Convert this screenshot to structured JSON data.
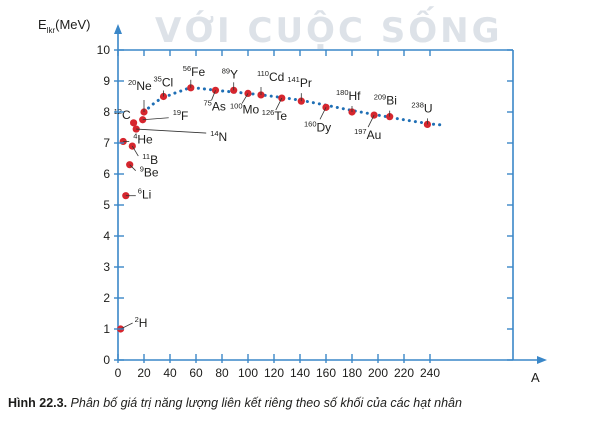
{
  "watermark": "VỚI CUỘC SỐNG",
  "chart_data": {
    "type": "scatter",
    "ylabel": "E",
    "ylabel_sub": "lkr",
    "ylabel_unit": "(MeV)",
    "xlabel": "A",
    "xlim": [
      0,
      260
    ],
    "ylim": [
      0,
      10
    ],
    "xticks": [
      0,
      20,
      40,
      60,
      80,
      100,
      120,
      140,
      160,
      180,
      200,
      220,
      240
    ],
    "yticks": [
      0,
      1,
      2,
      3,
      4,
      5,
      6,
      7,
      8,
      9,
      10
    ],
    "grid": false,
    "colors": {
      "frame": "#3a87c8",
      "point": "#d6262e",
      "curve": "#1f6fb5",
      "text": "#1d1d1b"
    },
    "trend_curve": [
      [
        20,
        8.0
      ],
      [
        30,
        8.35
      ],
      [
        40,
        8.55
      ],
      [
        50,
        8.7
      ],
      [
        56,
        8.78
      ],
      [
        65,
        8.75
      ],
      [
        80,
        8.68
      ],
      [
        100,
        8.6
      ],
      [
        120,
        8.5
      ],
      [
        140,
        8.38
      ],
      [
        160,
        8.22
      ],
      [
        180,
        8.05
      ],
      [
        200,
        7.9
      ],
      [
        220,
        7.75
      ],
      [
        240,
        7.62
      ],
      [
        250,
        7.58
      ]
    ],
    "points": [
      {
        "mass": "2",
        "symbol": "H",
        "A": 2,
        "E": 1.0
      },
      {
        "mass": "6",
        "symbol": "Li",
        "A": 6,
        "E": 5.3
      },
      {
        "mass": "9",
        "symbol": "Be",
        "A": 9,
        "E": 6.3
      },
      {
        "mass": "11",
        "symbol": "B",
        "A": 11,
        "E": 6.9
      },
      {
        "mass": "4",
        "symbol": "He",
        "A": 4,
        "E": 7.05
      },
      {
        "mass": "12",
        "symbol": "C",
        "A": 12,
        "E": 7.65
      },
      {
        "mass": "14",
        "symbol": "N",
        "A": 14,
        "E": 7.45
      },
      {
        "mass": "19",
        "symbol": "F",
        "A": 19,
        "E": 7.75
      },
      {
        "mass": "20",
        "symbol": "Ne",
        "A": 20,
        "E": 8.0
      },
      {
        "mass": "35",
        "symbol": "Cl",
        "A": 35,
        "E": 8.5
      },
      {
        "mass": "56",
        "symbol": "Fe",
        "A": 56,
        "E": 8.78
      },
      {
        "mass": "75",
        "symbol": "As",
        "A": 75,
        "E": 8.7
      },
      {
        "mass": "89",
        "symbol": "Y",
        "A": 89,
        "E": 8.7
      },
      {
        "mass": "100",
        "symbol": "Mo",
        "A": 100,
        "E": 8.6
      },
      {
        "mass": "110",
        "symbol": "Cd",
        "A": 110,
        "E": 8.55
      },
      {
        "mass": "126",
        "symbol": "Te",
        "A": 126,
        "E": 8.45
      },
      {
        "mass": "141",
        "symbol": "Pr",
        "A": 141,
        "E": 8.35
      },
      {
        "mass": "160",
        "symbol": "Dy",
        "A": 160,
        "E": 8.15
      },
      {
        "mass": "180",
        "symbol": "Hf",
        "A": 180,
        "E": 8.0
      },
      {
        "mass": "197",
        "symbol": "Au",
        "A": 197,
        "E": 7.9
      },
      {
        "mass": "209",
        "symbol": "Bi",
        "A": 209,
        "E": 7.85
      },
      {
        "mass": "238",
        "symbol": "U",
        "A": 238,
        "E": 7.6
      }
    ]
  },
  "caption": {
    "label": "Hình 22.3.",
    "text": "Phân bố giá trị năng lượng liên kết riêng theo số khối của các hạt nhân"
  }
}
